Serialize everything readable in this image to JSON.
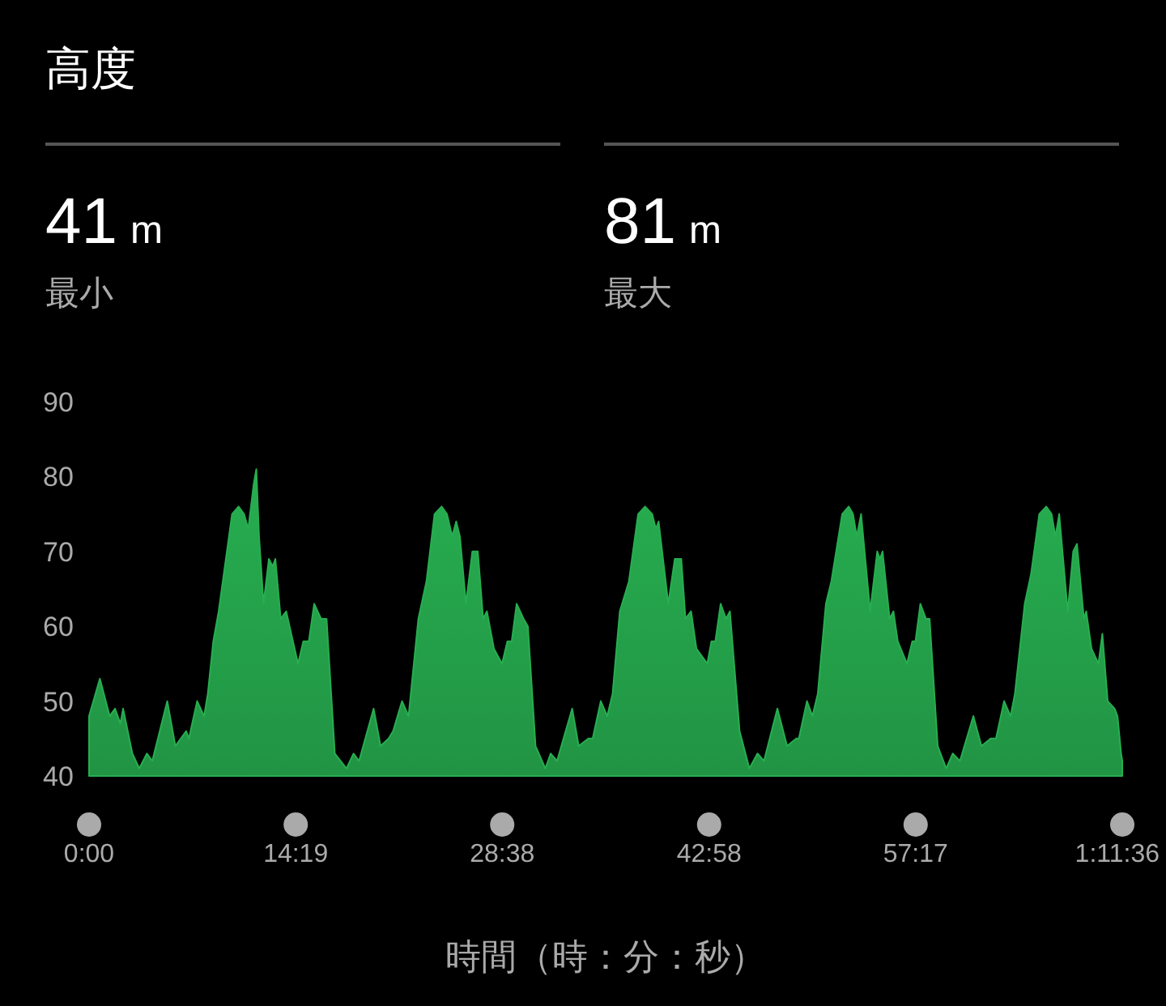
{
  "chart_data": {
    "type": "area",
    "title": "高度",
    "annotations": [
      "41 m",
      "最小",
      "81 m",
      "最大"
    ],
    "xlabel": "時間（時：分：秒）",
    "color": "#27ae50",
    "xlim": [
      0,
      71.6
    ],
    "ylim": [
      40,
      90
    ],
    "xticks": [
      {
        "value": 0,
        "label": "0:00"
      },
      {
        "value": 14.32,
        "label": "14:19"
      },
      {
        "value": 28.63,
        "label": "28:38"
      },
      {
        "value": 42.97,
        "label": "42:58"
      },
      {
        "value": 57.28,
        "label": "57:17"
      },
      {
        "value": 71.6,
        "label": "1:11:36"
      }
    ],
    "yticks": [
      40,
      50,
      60,
      70,
      80,
      90
    ],
    "x": [
      0,
      0.75,
      1.43,
      1.8,
      2.17,
      2.36,
      3.0,
      3.48,
      4.01,
      4.38,
      5.42,
      5.98,
      6.73,
      6.92,
      7.49,
      7.97,
      8.23,
      8.61,
      8.98,
      9.91,
      10.36,
      10.74,
      11.03,
      11.41,
      11.59,
      11.78,
      12.09,
      12.46,
      12.72,
      12.91,
      13.28,
      13.66,
      14.48,
      14.85,
      15.23,
      15.6,
      16.08,
      16.46,
      17.03,
      17.84,
      18.33,
      18.71,
      19.72,
      20.2,
      20.76,
      21.07,
      21.69,
      22.14,
      22.82,
      23.38,
      23.94,
      24.43,
      24.8,
      25.17,
      25.44,
      25.7,
      26.12,
      26.56,
      26.94,
      27.31,
      27.57,
      28.06,
      28.62,
      28.99,
      29.29,
      29.63,
      30.11,
      30.41,
      30.94,
      31.62,
      31.99,
      32.43,
      33.48,
      33.93,
      34.6,
      34.9,
      35.46,
      35.91,
      36.28,
      36.78,
      37.41,
      38.05,
      38.53,
      39.02,
      39.28,
      39.47,
      40.14,
      40.59,
      40.89,
      41.04,
      41.33,
      41.72,
      42.09,
      42.84,
      43.13,
      43.4,
      43.77,
      44.14,
      44.41,
      45.08,
      45.76,
      46.32,
      46.77,
      47.7,
      48.37,
      49.01,
      49.19,
      49.75,
      50.13,
      50.5,
      51.06,
      51.44,
      52.19,
      52.64,
      52.94,
      53.2,
      53.5,
      54.13,
      54.62,
      54.8,
      54.99,
      55.48,
      55.74,
      56.04,
      56.68,
      57.05,
      57.27,
      57.61,
      57.99,
      58.25,
      58.81,
      59.4,
      59.85,
      60.35,
      61.28,
      61.84,
      62.48,
      62.85,
      63.41,
      63.86,
      64.16,
      64.84,
      65.28,
      65.85,
      66.33,
      66.7,
      66.97,
      67.23,
      67.82,
      68.2,
      68.46,
      68.94,
      69.1,
      69.47,
      69.95,
      70.22,
      70.59,
      71.07,
      71.27,
      71.52,
      71.6
    ],
    "values": [
      48,
      53,
      48,
      49,
      47,
      49,
      43,
      41,
      43,
      42,
      50,
      44,
      46,
      45,
      50,
      48,
      51,
      58,
      62,
      75,
      76,
      75,
      73,
      79,
      81,
      72,
      63,
      69,
      68,
      69,
      61,
      62,
      55,
      58,
      58,
      63,
      61,
      61,
      43,
      41,
      43,
      42,
      49,
      44,
      45,
      46,
      50,
      48,
      61,
      66,
      75,
      76,
      75,
      72,
      74,
      72,
      63,
      70,
      70,
      61,
      62,
      57,
      55,
      58,
      58,
      63,
      61,
      60,
      44,
      41,
      43,
      42,
      49,
      44,
      45,
      45,
      50,
      48,
      51,
      62,
      66,
      75,
      76,
      75,
      73,
      74,
      63,
      69,
      69,
      69,
      61,
      62,
      57,
      55,
      58,
      58,
      63,
      61,
      62,
      46,
      41,
      43,
      42,
      49,
      44,
      45,
      45,
      50,
      48,
      51,
      63,
      66,
      75,
      76,
      75,
      72,
      75,
      62,
      70,
      69,
      70,
      61,
      62,
      58,
      55,
      58,
      58,
      63,
      61,
      61,
      44,
      41,
      43,
      42,
      48,
      44,
      45,
      45,
      50,
      48,
      51,
      63,
      67,
      75,
      76,
      75,
      72,
      75,
      62,
      70,
      71,
      61,
      62,
      57,
      55,
      59,
      50,
      49,
      48,
      43,
      42
    ]
  }
}
